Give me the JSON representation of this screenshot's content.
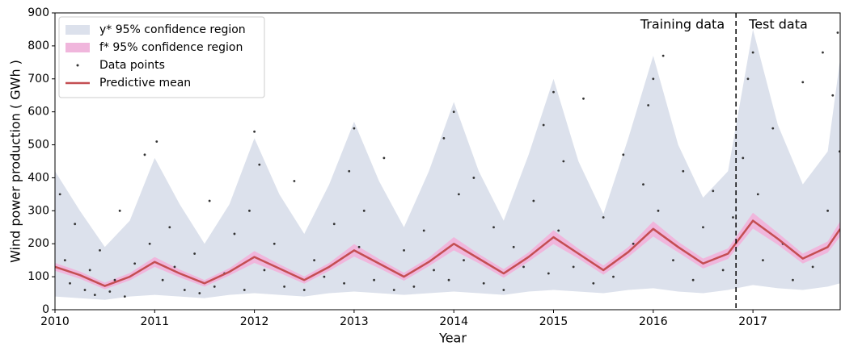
{
  "chart_data": {
    "type": "line",
    "xlabel": "Year",
    "ylabel": "Wind power production ( GWh )",
    "xlim": [
      2010,
      2017.875
    ],
    "ylim": [
      0,
      900
    ],
    "xticks": [
      2010,
      2011,
      2012,
      2013,
      2014,
      2015,
      2016,
      2017
    ],
    "yticks": [
      0,
      100,
      200,
      300,
      400,
      500,
      600,
      700,
      800,
      900
    ],
    "legend": "upper left",
    "x": [
      2010,
      2010.25,
      2010.5,
      2010.75,
      2011,
      2011.25,
      2011.5,
      2011.75,
      2012,
      2012.25,
      2012.5,
      2012.75,
      2013,
      2013.25,
      2013.5,
      2013.75,
      2014,
      2014.25,
      2014.5,
      2014.75,
      2015,
      2015.25,
      2015.5,
      2015.75,
      2016,
      2016.25,
      2016.5,
      2016.75,
      2017,
      2017.25,
      2017.5,
      2017.75,
      2017.875
    ],
    "series": [
      {
        "name": "y* 95% confidence region",
        "kind": "band",
        "color": "#dce1ec",
        "lower": [
          40,
          35,
          30,
          40,
          45,
          40,
          35,
          45,
          50,
          45,
          40,
          50,
          55,
          50,
          45,
          50,
          55,
          50,
          45,
          55,
          60,
          55,
          50,
          60,
          65,
          55,
          50,
          60,
          75,
          65,
          60,
          70,
          80
        ],
        "upper": [
          420,
          300,
          190,
          270,
          460,
          320,
          200,
          320,
          520,
          350,
          230,
          380,
          570,
          390,
          250,
          420,
          630,
          420,
          270,
          470,
          700,
          450,
          290,
          520,
          770,
          500,
          340,
          420,
          850,
          560,
          380,
          480,
          760
        ]
      },
      {
        "name": "f* 95% confidence region",
        "kind": "band",
        "color": "#f0b6dc",
        "lower": [
          118,
          94,
          62,
          89,
          130,
          98,
          70,
          104,
          142,
          112,
          79,
          118,
          161,
          126,
          88,
          132,
          180,
          141,
          97,
          146,
          199,
          155,
          106,
          160,
          222,
          174,
          125,
          154,
          246,
          197,
          140,
          173,
          222
        ],
        "upper": [
          142,
          116,
          82,
          111,
          160,
          122,
          90,
          126,
          178,
          138,
          101,
          142,
          199,
          154,
          112,
          158,
          220,
          169,
          123,
          174,
          241,
          185,
          134,
          190,
          268,
          206,
          155,
          186,
          294,
          233,
          170,
          207,
          268
        ]
      },
      {
        "name": "Data points",
        "kind": "scatter",
        "color": "#333333",
        "x": [
          2010.05,
          2010.1,
          2010.15,
          2010.2,
          2010.3,
          2010.35,
          2010.4,
          2010.45,
          2010.55,
          2010.6,
          2010.65,
          2010.7,
          2010.8,
          2010.9,
          2010.95,
          2011.02,
          2011.08,
          2011.15,
          2011.2,
          2011.3,
          2011.4,
          2011.45,
          2011.55,
          2011.6,
          2011.7,
          2011.8,
          2011.9,
          2011.95,
          2012.0,
          2012.05,
          2012.1,
          2012.2,
          2012.3,
          2012.4,
          2012.5,
          2012.6,
          2012.7,
          2012.8,
          2012.9,
          2012.95,
          2013.0,
          2013.05,
          2013.1,
          2013.2,
          2013.3,
          2013.4,
          2013.5,
          2013.6,
          2013.7,
          2013.8,
          2013.9,
          2013.95,
          2014.0,
          2014.05,
          2014.1,
          2014.2,
          2014.3,
          2014.4,
          2014.5,
          2014.6,
          2014.7,
          2014.8,
          2014.9,
          2014.95,
          2015.0,
          2015.05,
          2015.1,
          2015.2,
          2015.3,
          2015.4,
          2015.5,
          2015.6,
          2015.7,
          2015.8,
          2015.9,
          2015.95,
          2016.0,
          2016.05,
          2016.1,
          2016.2,
          2016.3,
          2016.4,
          2016.5,
          2016.6,
          2016.7,
          2016.8,
          2016.9,
          2016.95,
          2017.0,
          2017.05,
          2017.1,
          2017.2,
          2017.3,
          2017.4,
          2017.5,
          2017.6,
          2017.7,
          2017.75,
          2017.8,
          2017.85,
          2017.87
        ],
        "values": [
          350,
          150,
          80,
          260,
          60,
          120,
          45,
          180,
          55,
          90,
          300,
          40,
          140,
          470,
          200,
          510,
          90,
          250,
          130,
          60,
          170,
          50,
          330,
          70,
          110,
          230,
          60,
          300,
          540,
          440,
          120,
          200,
          70,
          390,
          60,
          150,
          100,
          260,
          80,
          420,
          550,
          190,
          300,
          90,
          460,
          60,
          180,
          70,
          240,
          120,
          520,
          90,
          600,
          350,
          150,
          400,
          80,
          250,
          60,
          190,
          130,
          330,
          560,
          110,
          660,
          240,
          450,
          130,
          640,
          80,
          280,
          100,
          470,
          200,
          380,
          620,
          700,
          300,
          770,
          150,
          420,
          90,
          250,
          360,
          120,
          280,
          460,
          700,
          780,
          350,
          150,
          550,
          200,
          90,
          690,
          130,
          780,
          300,
          650,
          840,
          480
        ]
      },
      {
        "name": "Predictive mean",
        "kind": "line",
        "color": "#c44e52",
        "values": [
          130,
          105,
          72,
          100,
          145,
          110,
          80,
          115,
          160,
          125,
          90,
          130,
          180,
          140,
          100,
          145,
          200,
          155,
          110,
          160,
          220,
          170,
          120,
          175,
          245,
          190,
          140,
          170,
          270,
          215,
          155,
          190,
          245
        ]
      }
    ],
    "divider_x": 2016.83,
    "annotations": [
      {
        "text": "Training data"
      },
      {
        "text": "Test data"
      }
    ]
  }
}
